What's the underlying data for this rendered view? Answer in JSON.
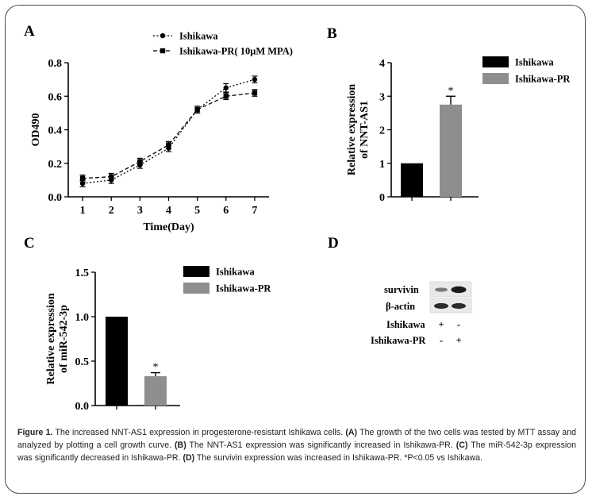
{
  "panels": {
    "a": {
      "letter": "A"
    },
    "b": {
      "letter": "B"
    },
    "c": {
      "letter": "C"
    },
    "d": {
      "letter": "D"
    }
  },
  "chart_data": [
    {
      "type": "line",
      "panel": "A",
      "xlabel": "Time(Day)",
      "ylabel": "OD490",
      "x": [
        1,
        2,
        3,
        4,
        5,
        6,
        7
      ],
      "xticks": [
        "1",
        "2",
        "3",
        "4",
        "5",
        "6",
        "7"
      ],
      "yticks": [
        "0.0",
        "0.2",
        "0.4",
        "0.6",
        "0.8"
      ],
      "ylim": [
        0,
        0.8
      ],
      "legend_position": "top",
      "series": [
        {
          "name": "Ishikawa",
          "marker": "circle",
          "line": "dotted",
          "values": [
            0.08,
            0.1,
            0.19,
            0.29,
            0.52,
            0.65,
            0.7
          ],
          "errors": [
            0.02,
            0.02,
            0.02,
            0.02,
            0.02,
            0.025,
            0.02
          ]
        },
        {
          "name": "Ishikawa-PR( 10μM MPA)",
          "marker": "square",
          "line": "dashed",
          "values": [
            0.11,
            0.12,
            0.21,
            0.31,
            0.52,
            0.6,
            0.62
          ],
          "errors": [
            0.02,
            0.02,
            0.02,
            0.02,
            0.02,
            0.02,
            0.02
          ]
        }
      ]
    },
    {
      "type": "bar",
      "panel": "B",
      "ylabel": "Relative expression of NNT-AS1",
      "categories": [
        "Ishikawa",
        "Ishikawa-PR"
      ],
      "values": [
        1.0,
        2.75
      ],
      "errors": [
        0,
        0.25
      ],
      "colors": [
        "#000000",
        "#8e8e8e"
      ],
      "yticks": [
        "0",
        "1",
        "2",
        "3",
        "4"
      ],
      "ylim": [
        0,
        4
      ],
      "annotation": "*",
      "legend_position": "top-right"
    },
    {
      "type": "bar",
      "panel": "C",
      "ylabel": "Relative expression of miR-542-3p",
      "categories": [
        "Ishikawa",
        "Ishikawa-PR"
      ],
      "values": [
        1.0,
        0.33
      ],
      "errors": [
        0,
        0.04
      ],
      "colors": [
        "#000000",
        "#8e8e8e"
      ],
      "yticks": [
        "0.0",
        "0.5",
        "1.0",
        "1.5"
      ],
      "ylim": [
        0,
        1.5
      ],
      "annotation": "*",
      "legend_position": "top-right"
    }
  ],
  "blot": {
    "rows": [
      "survivin",
      "β-actin"
    ],
    "conditions": [
      {
        "label": "Ishikawa",
        "marks": [
          "+",
          "-"
        ]
      },
      {
        "label": "Ishikawa-PR",
        "marks": [
          "-",
          "+"
        ]
      }
    ]
  },
  "caption": {
    "figure_label": "Figure 1.",
    "intro": " The increased NNT-AS1 expression in progesterone-resistant Ishikawa cells. ",
    "a_label": "(A)",
    "a_text": " The growth of the two cells was tested by MTT assay and analyzed by plotting a cell growth curve. ",
    "b_label": "(B)",
    "b_text": " The NNT-AS1 expression was significantly increased in Ishikawa-PR. ",
    "c_label": "(C)",
    "c_text": " The miR-542-3p expression was significantly decreased in Ishikawa-PR. ",
    "d_label": "(D)",
    "d_text": " The survivin expression was increased in Ishikawa-PR. *P<0.05 vs Ishikawa."
  }
}
